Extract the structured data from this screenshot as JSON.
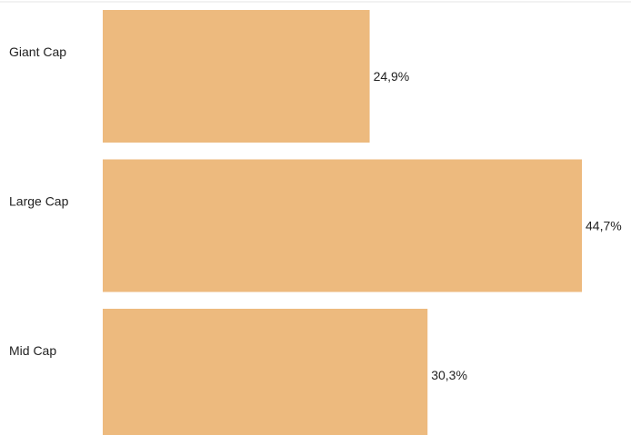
{
  "chart_data": {
    "type": "bar",
    "orientation": "horizontal",
    "categories": [
      "Giant Cap",
      "Large Cap",
      "Mid Cap"
    ],
    "values": [
      24.9,
      44.7,
      30.3
    ],
    "value_labels": [
      "24,9%",
      "44,7%",
      "30,3%"
    ],
    "title": "",
    "xlabel": "",
    "ylabel": "",
    "xlim": [
      0,
      47
    ],
    "grid": false,
    "legend": "none"
  },
  "colors": {
    "bar": "#EDBA7E",
    "text": "#222222",
    "top_rule": "#E6E6E6"
  }
}
